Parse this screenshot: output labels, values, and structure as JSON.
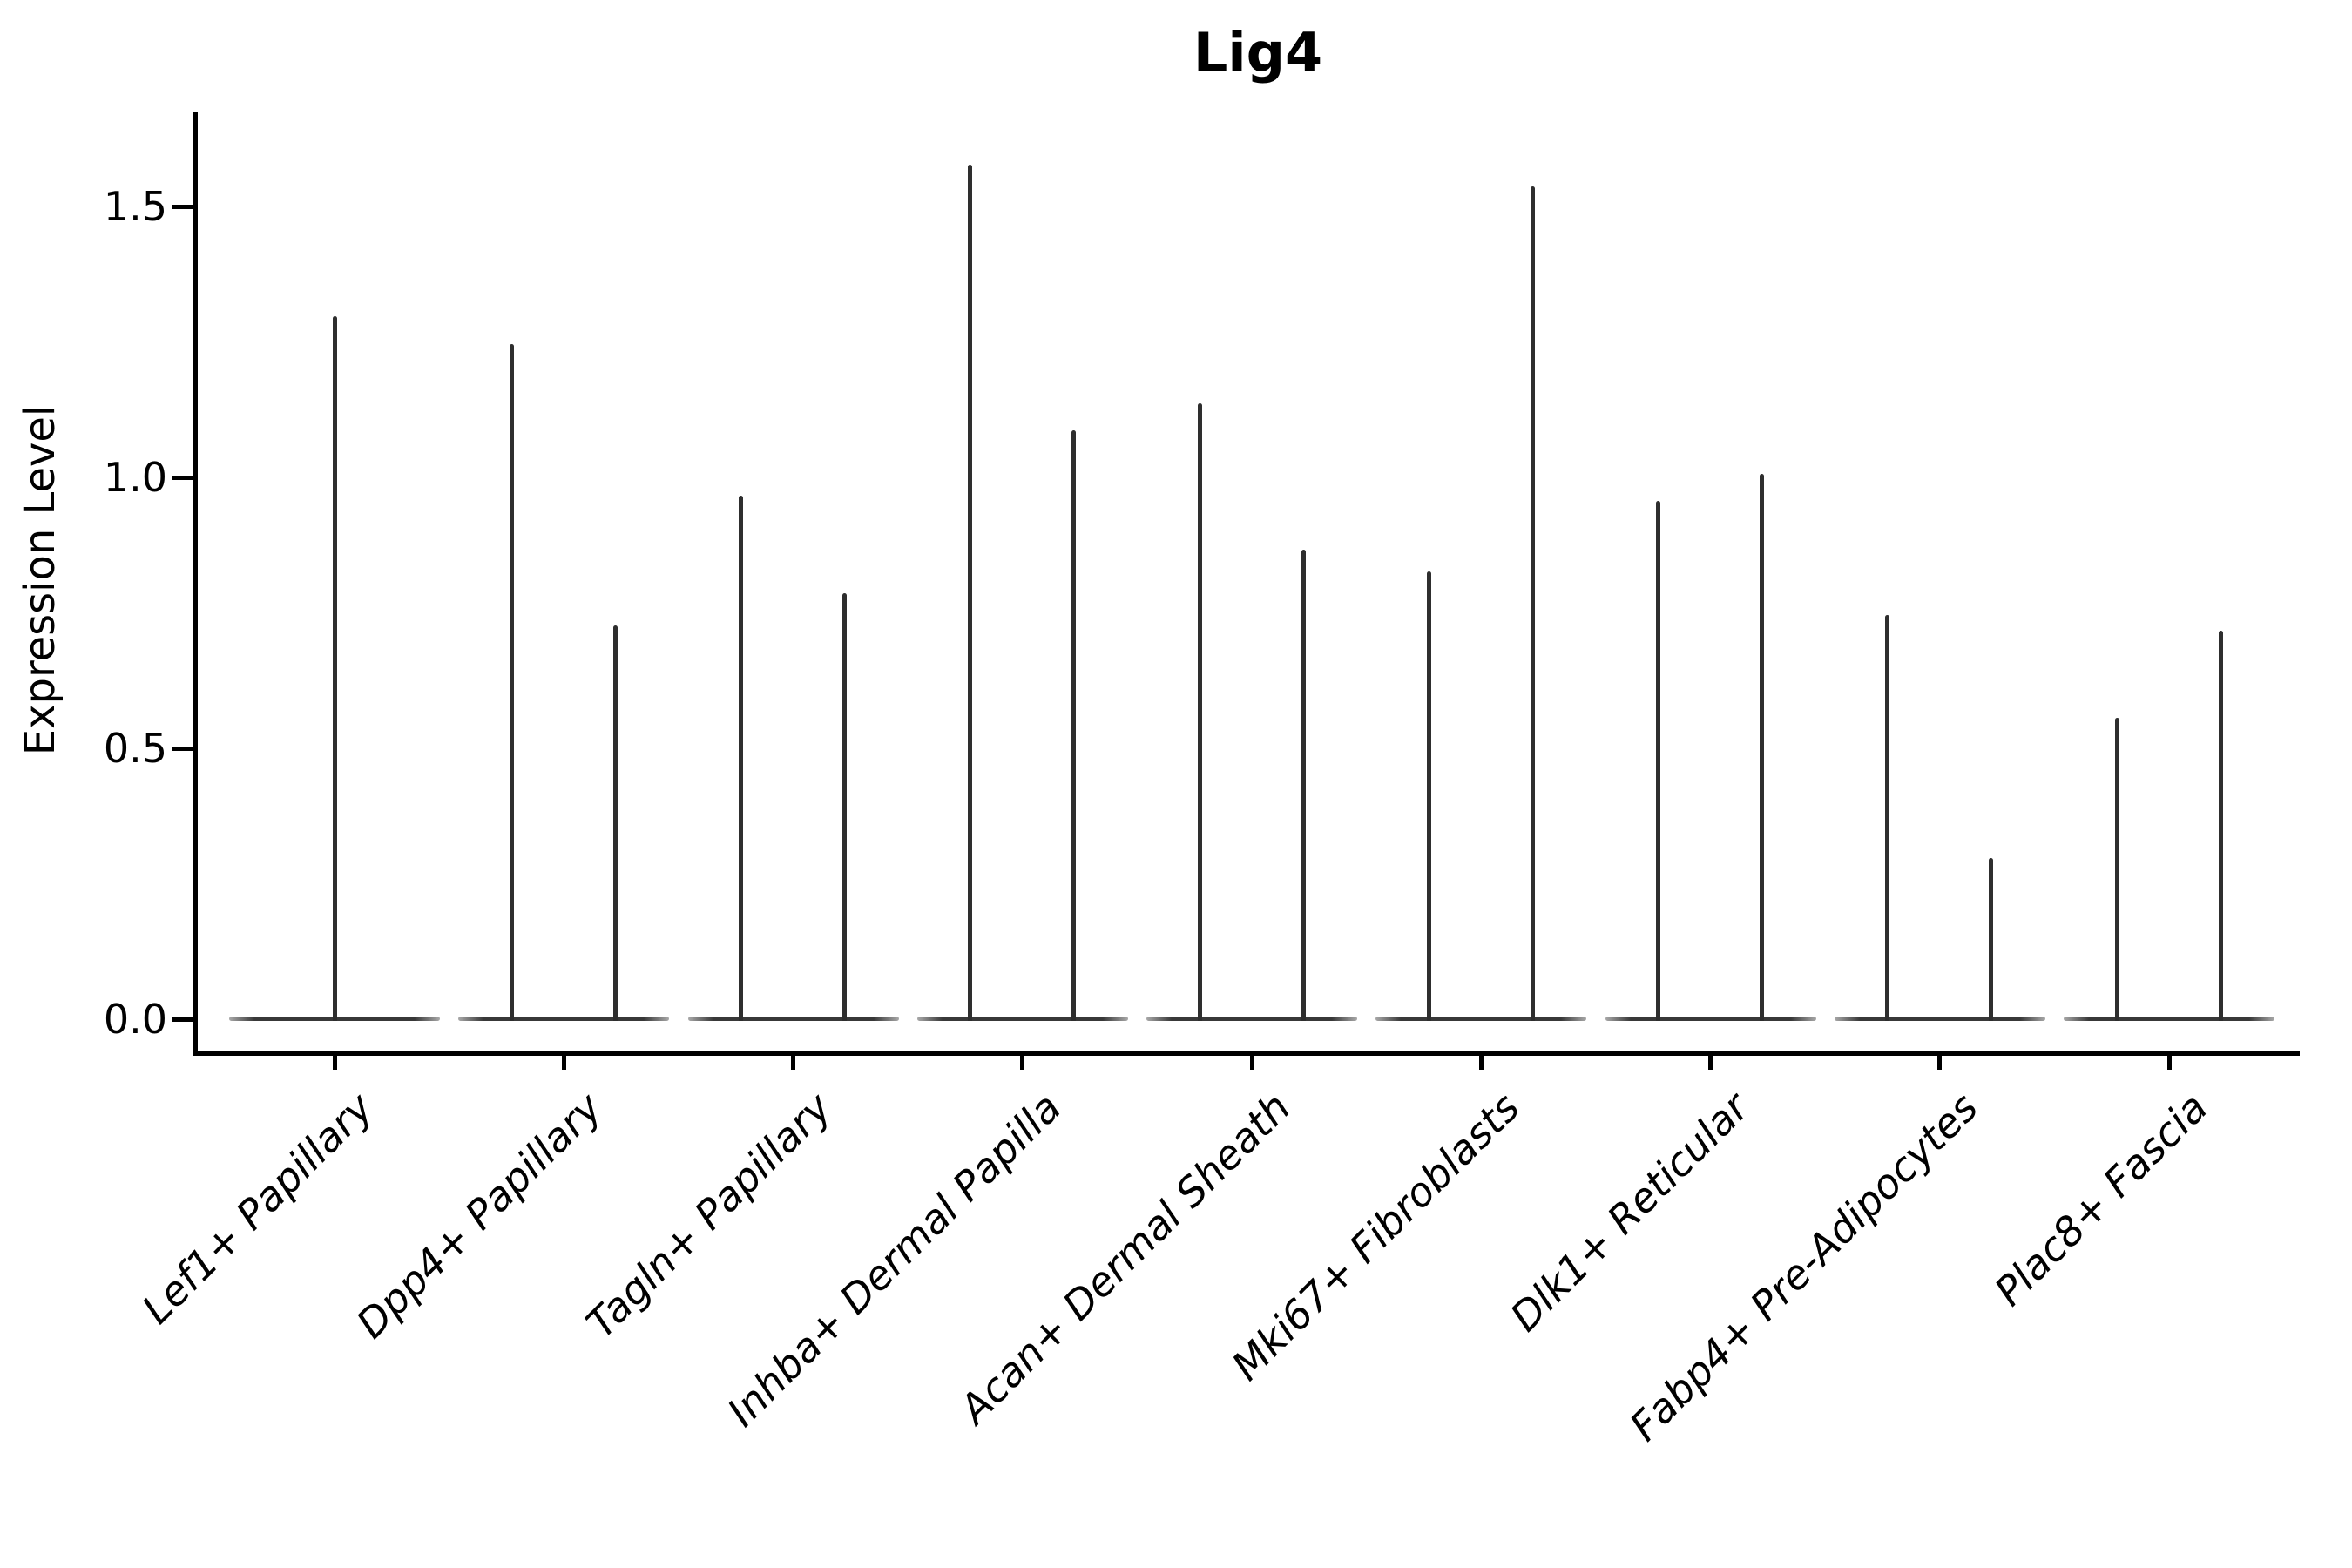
{
  "figure": {
    "title": "Lig4",
    "y_axis_title": "Expression Level"
  },
  "chart_data": {
    "type": "violin",
    "title": "Lig4",
    "xlabel": "",
    "ylabel": "Expression Level",
    "ylim": [
      -0.06,
      1.68
    ],
    "yticks": [
      0.0,
      0.5,
      1.0,
      1.5
    ],
    "ytick_labels": [
      "0.0",
      "0.5",
      "1.0",
      "1.5"
    ],
    "grid": false,
    "legend_position": "none",
    "background": "#ffffff",
    "description": "Violin plot of Lig4 expression; each cluster shows a flat density body at 0 with thin needle spikes reaching the maximum expression values.",
    "categories": [
      "Lef1+ Papillary",
      "Dpp4+ Papillary",
      "Tagln+ Papillary",
      "Inhba+ Dermal Papilla",
      "Acan+ Dermal Sheath",
      "Mki67+ Fibroblasts",
      "Dlk1+ Reticular",
      "Fabp4+ Pre-Adipocytes",
      "Plac8+ Fascia"
    ],
    "violins": [
      {
        "category": "Lef1+ Papillary",
        "baseline_value": 0.0,
        "spike_max_values": [
          1.3
        ]
      },
      {
        "category": "Dpp4+ Papillary",
        "baseline_value": 0.0,
        "spike_max_values": [
          1.25,
          0.73
        ]
      },
      {
        "category": "Tagln+ Papillary",
        "baseline_value": 0.0,
        "spike_max_values": [
          0.97,
          0.79
        ]
      },
      {
        "category": "Inhba+ Dermal Papilla",
        "baseline_value": 0.0,
        "spike_max_values": [
          1.58,
          1.09
        ]
      },
      {
        "category": "Acan+ Dermal Sheath",
        "baseline_value": 0.0,
        "spike_max_values": [
          1.14,
          0.87
        ]
      },
      {
        "category": "Mki67+ Fibroblasts",
        "baseline_value": 0.0,
        "spike_max_values": [
          0.83,
          1.54
        ]
      },
      {
        "category": "Dlk1+ Reticular",
        "baseline_value": 0.0,
        "spike_max_values": [
          0.96,
          1.01
        ]
      },
      {
        "category": "Fabp4+ Pre-Adipocytes",
        "baseline_value": 0.0,
        "spike_max_values": [
          0.75,
          0.3
        ]
      },
      {
        "category": "Plac8+ Fascia",
        "baseline_value": 0.0,
        "spike_max_values": [
          0.56,
          0.72
        ]
      }
    ],
    "colors": {
      "violin_outline": "#2e2e2e",
      "axis": "#000000",
      "text": "#000000",
      "background": "#ffffff"
    }
  }
}
